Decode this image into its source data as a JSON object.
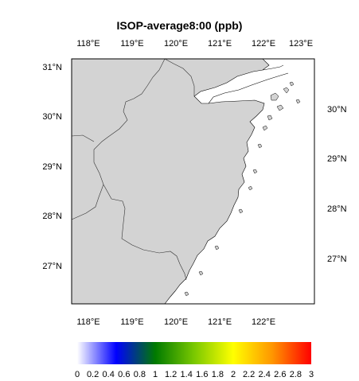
{
  "title": "ISOP-average8:00 (ppb)",
  "map": {
    "land_color": "#d3d3d3",
    "sea_color": "#ffffff",
    "top_ticks": [
      "118°E",
      "119°E",
      "120°E",
      "121°E",
      "122°E",
      "123°E"
    ],
    "bottom_ticks": [
      "118°E",
      "119°E",
      "120°E",
      "121°E",
      "122°E"
    ],
    "left_ticks": [
      "31°N",
      "30°N",
      "29°N",
      "28°N",
      "27°N"
    ],
    "right_ticks": [
      "30°N",
      "29°N",
      "28°N",
      "27°N"
    ]
  },
  "colorbar": {
    "min": 0,
    "max": 3,
    "colors": [
      "#ffffff",
      "#0000ff",
      "#007a00",
      "#7ac800",
      "#ffff00",
      "#ff9600",
      "#ff0000"
    ],
    "labels": [
      "0",
      "0.2",
      "0.4",
      "0.6",
      "0.8",
      "1",
      "1.2",
      "1.4",
      "1.6",
      "1.8",
      "2",
      "2.2",
      "2.4",
      "2.6",
      "2.8",
      "3"
    ]
  }
}
